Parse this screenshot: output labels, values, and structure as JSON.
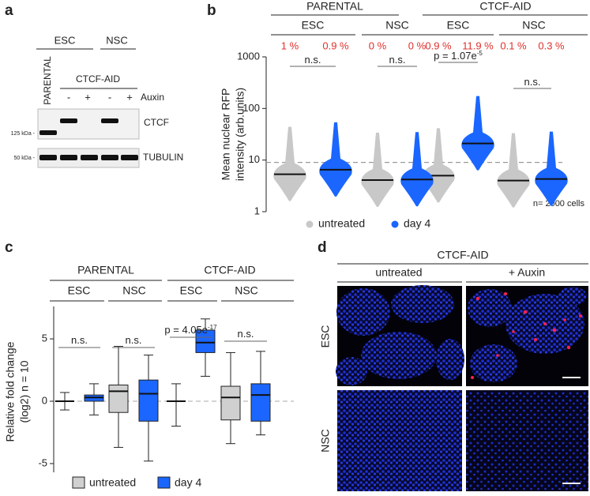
{
  "panel_labels": [
    "a",
    "b",
    "c",
    "d"
  ],
  "blot": {
    "cell_types": [
      "ESC",
      "NSC"
    ],
    "lines": [
      "PARENTAL",
      "CTCF-AID"
    ],
    "auxin_signs": [
      "-",
      "+",
      "-",
      "+"
    ],
    "treatment_label": "Auxin",
    "markers": [
      "125 kDa -",
      "50 kDa -"
    ],
    "proteins": [
      "CTCF",
      "TUBULIN"
    ]
  },
  "chart_data": [
    {
      "type": "swarm",
      "y_label": [
        "Mean nuclear RFP",
        "intensity (arb.units)"
      ],
      "groups": [
        "PARENTAL",
        "CTCF-AID"
      ],
      "subgroups": [
        "ESC",
        "NSC",
        "ESC",
        "NSC"
      ],
      "series": [
        {
          "name": "untreated",
          "color": "#c8c8c8",
          "values": [
            5.3,
            4.1,
            5.0,
            4.0
          ],
          "percent_above_threshold": [
            1,
            0,
            0.9,
            0.1
          ],
          "percent_labels": [
            "1 %",
            "0 %",
            "0.9 %",
            "0.1 %"
          ]
        },
        {
          "name": "day 4",
          "color": "#1a66ff",
          "values": [
            6.5,
            4.2,
            21,
            4.3
          ],
          "percent_above_threshold": [
            0.9,
            0,
            11.9,
            0.3
          ],
          "percent_labels": [
            "0.9 %",
            "0 %",
            "11.9 %",
            "0.3 %"
          ]
        }
      ],
      "threshold": 9,
      "log_scale": true,
      "ylim": [
        1,
        1000
      ],
      "yticks": [
        1,
        10,
        100,
        1000
      ],
      "annotations": [
        {
          "text": "n.s."
        },
        {
          "text": "n.s."
        },
        {
          "text": "p = 1.07e",
          "superscript": "-5"
        },
        {
          "text": "n.s."
        }
      ],
      "note": "n= 2000 cells"
    },
    {
      "type": "box",
      "y_label": [
        "Relative fold change",
        "(log2) n = 10"
      ],
      "groups": [
        "PARENTAL",
        "CTCF-AID"
      ],
      "subgroups": [
        "ESC",
        "NSC",
        "ESC",
        "NSC"
      ],
      "series": [
        {
          "name": "untreated",
          "color": "#d0d0d0",
          "whisker_low": [
            -0.7,
            -3.7,
            -2.0,
            -3.4
          ],
          "q1": [
            0,
            -0.9,
            0,
            -1.5
          ],
          "median": [
            0,
            0.8,
            0,
            0.3
          ],
          "q3": [
            0,
            1.3,
            0,
            1.2
          ],
          "whisker_high": [
            0.7,
            4.4,
            1.4,
            3.9
          ]
        },
        {
          "name": "day 4",
          "color": "#1a66ff",
          "whisker_low": [
            -1.1,
            -4.8,
            2.0,
            -2.7
          ],
          "q1": [
            0,
            -1.6,
            3.9,
            -1.6
          ],
          "median": [
            0.3,
            0.6,
            4.7,
            0.5
          ],
          "q3": [
            0.5,
            1.7,
            5.7,
            1.4
          ],
          "whisker_high": [
            1.4,
            3.7,
            6.6,
            4.0
          ]
        }
      ],
      "reference_line": 0,
      "ylim": [
        -5.7,
        7.6
      ],
      "yticks": [
        -5,
        0,
        5
      ],
      "annotations": [
        {
          "text": "n.s."
        },
        {
          "text": "n.s."
        },
        {
          "text": "p = 4.05e",
          "superscript": "-17"
        },
        {
          "text": "n.s."
        }
      ]
    }
  ],
  "microscopy": {
    "title": "CTCF-AID",
    "columns": [
      "untreated",
      "+ Auxin"
    ],
    "rows": [
      "ESC",
      "NSC"
    ]
  }
}
